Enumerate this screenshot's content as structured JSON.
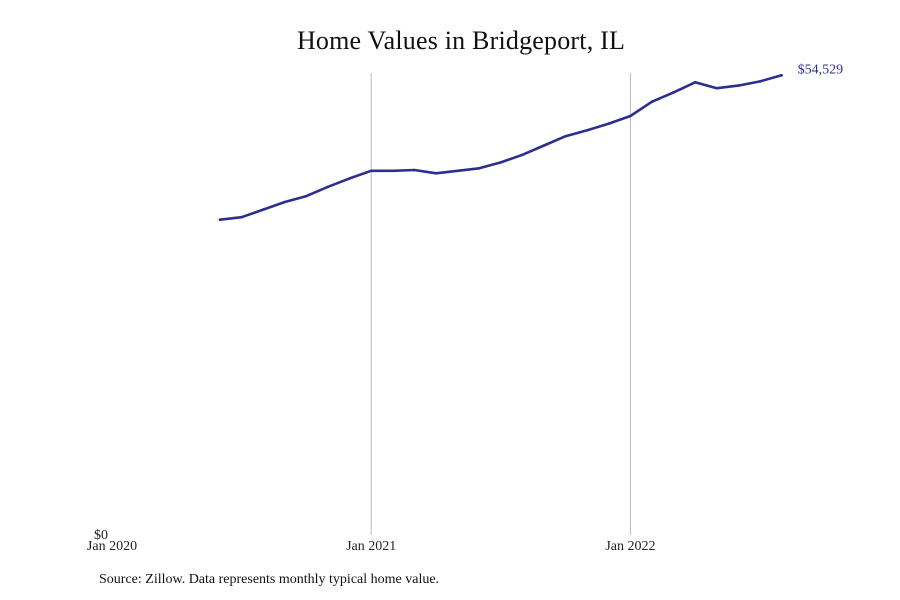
{
  "chart_data": {
    "type": "line",
    "title": "Home Values in Bridgeport, IL",
    "xlabel": "",
    "ylabel": "",
    "x_ticks": [
      "Jan 2020",
      "Jan 2021",
      "Jan 2022"
    ],
    "y_ticks": [
      "$0"
    ],
    "end_label": "$54,529",
    "xlim": [
      "2020-01",
      "2022-10"
    ],
    "ylim": [
      0,
      54800
    ],
    "grid": "vertical lines at Jan 2021 and Jan 2022",
    "legend": "none",
    "series": [
      {
        "x": [
          "2020-06",
          "2020-07",
          "2020-08",
          "2020-09",
          "2020-10",
          "2020-11",
          "2020-12",
          "2021-01",
          "2021-02",
          "2021-03",
          "2021-04",
          "2021-05",
          "2021-06",
          "2021-07",
          "2021-08",
          "2021-09",
          "2021-10",
          "2021-11",
          "2021-12",
          "2022-01",
          "2022-02",
          "2022-03",
          "2022-04",
          "2022-05",
          "2022-06",
          "2022-07",
          "2022-08"
        ],
        "y": [
          37400,
          37700,
          38600,
          39500,
          40200,
          41300,
          42300,
          43200,
          43200,
          43300,
          42900,
          43200,
          43500,
          44200,
          45100,
          46200,
          47300,
          48000,
          48800,
          49700,
          51400,
          52500,
          53700,
          53000,
          53300,
          53800,
          54529
        ]
      }
    ],
    "colors": {
      "line": "#2e2e8f",
      "gridline": "#b8b8b8",
      "text": "#222222"
    }
  },
  "source": "Source: Zillow. Data represents monthly typical home value."
}
